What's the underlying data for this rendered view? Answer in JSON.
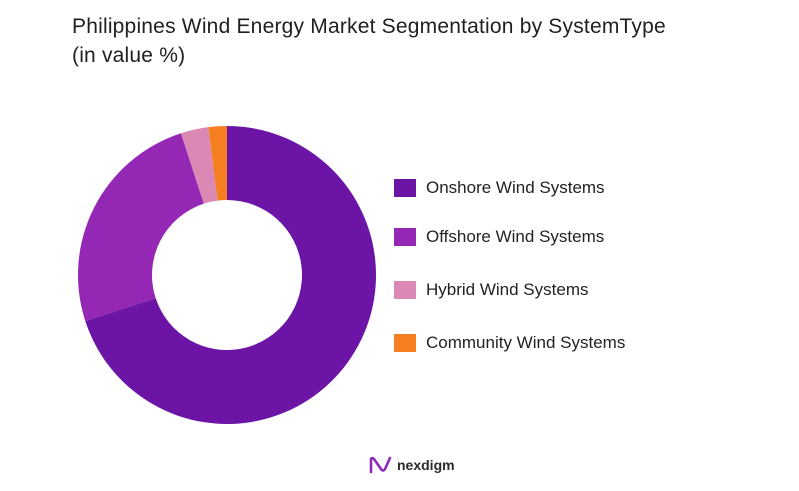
{
  "title_line1": "Philippines Wind Energy Market Segmentation by SystemType",
  "title_line2": "(in value %)",
  "logo_text": "nexdigm",
  "chart_data": {
    "type": "pie",
    "donut": true,
    "legend_position": "right",
    "slices": [
      {
        "label": "Onshore Wind Systems",
        "value": 70,
        "color": "#6B14A6"
      },
      {
        "label": "Offshore Wind Systems",
        "value": 25,
        "color": "#9427B4"
      },
      {
        "label": "Hybrid Wind Systems",
        "value": 3,
        "color": "#DC88B4"
      },
      {
        "label": "Community Wind Systems",
        "value": 2,
        "color": "#F57F20"
      }
    ]
  }
}
